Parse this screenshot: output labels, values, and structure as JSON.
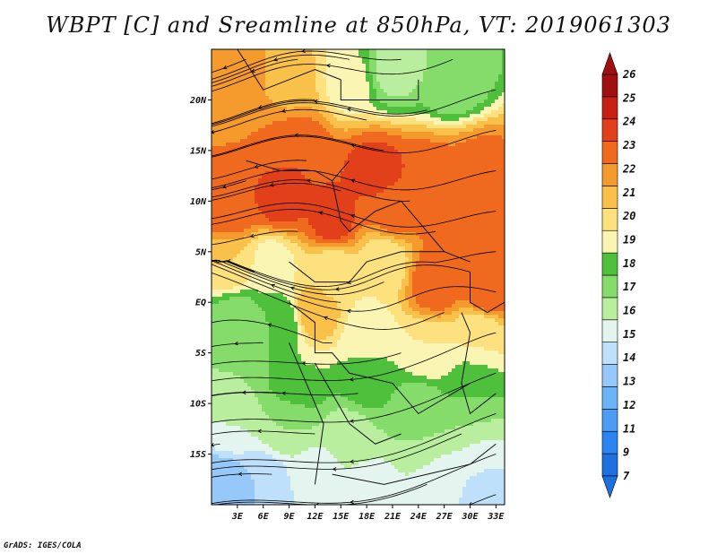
{
  "title": "WBPT [C] and Sreamline at 850hPa, VT: 2019061303",
  "credit": "GrADS: IGES/COLA",
  "map": {
    "lon_range": [
      0,
      34
    ],
    "lat_range": [
      -20,
      25
    ],
    "lat_labels": [
      {
        "text": "20N",
        "lat": 20
      },
      {
        "text": "15N",
        "lat": 15
      },
      {
        "text": "10N",
        "lat": 10
      },
      {
        "text": "5N",
        "lat": 5
      },
      {
        "text": "EQ",
        "lat": 0
      },
      {
        "text": "5S",
        "lat": -5
      },
      {
        "text": "10S",
        "lat": -10
      },
      {
        "text": "15S",
        "lat": -15
      }
    ],
    "lon_labels": [
      {
        "text": "3E",
        "lon": 3
      },
      {
        "text": "6E",
        "lon": 6
      },
      {
        "text": "9E",
        "lon": 9
      },
      {
        "text": "12E",
        "lon": 12
      },
      {
        "text": "15E",
        "lon": 15
      },
      {
        "text": "18E",
        "lon": 18
      },
      {
        "text": "21E",
        "lon": 21
      },
      {
        "text": "24E",
        "lon": 24
      },
      {
        "text": "27E",
        "lon": 27
      },
      {
        "text": "30E",
        "lon": 30
      },
      {
        "text": "33E",
        "lon": 33
      }
    ]
  },
  "colorbar": {
    "labels": [
      "7",
      "9",
      "11",
      "12",
      "13",
      "14",
      "15",
      "16",
      "17",
      "18",
      "19",
      "20",
      "21",
      "22",
      "23",
      "24",
      "25",
      "26"
    ],
    "colors": [
      "#1e6fe0",
      "#2b85f0",
      "#4a9cf5",
      "#6db3f8",
      "#96c9fa",
      "#bfe0fb",
      "#e3f5ee",
      "#b9ee9e",
      "#86dc6a",
      "#4fc03c",
      "#fbf5b4",
      "#fde17e",
      "#f9c04a",
      "#f59a2d",
      "#ef6a1e",
      "#e2401a",
      "#c81f15",
      "#a01010"
    ]
  },
  "field": {
    "temp_sites": [
      [
        3,
        22,
        22.5
      ],
      [
        9,
        22,
        21.5
      ],
      [
        16,
        22,
        19.5
      ],
      [
        21,
        23,
        16.5
      ],
      [
        28,
        22,
        17
      ],
      [
        4,
        17,
        23
      ],
      [
        10,
        15,
        24
      ],
      [
        19,
        13,
        24.5
      ],
      [
        25,
        12,
        24
      ],
      [
        31,
        13,
        23.5
      ],
      [
        2,
        9,
        24
      ],
      [
        8,
        10,
        24.5
      ],
      [
        14,
        8,
        24.5
      ],
      [
        21,
        9,
        23.5
      ],
      [
        29,
        7,
        24
      ],
      [
        2,
        4,
        21
      ],
      [
        7,
        4,
        19.5
      ],
      [
        14,
        3,
        20
      ],
      [
        20,
        4,
        20
      ],
      [
        26,
        2,
        24
      ],
      [
        32,
        1,
        24
      ],
      [
        3,
        -2,
        17
      ],
      [
        8,
        -2,
        18
      ],
      [
        12,
        -1,
        22
      ],
      [
        18,
        -3,
        19.5
      ],
      [
        25,
        -5,
        20
      ],
      [
        31,
        -3,
        20
      ],
      [
        3,
        -7,
        17
      ],
      [
        10,
        -8,
        19
      ],
      [
        18,
        -8,
        18.5
      ],
      [
        24,
        -10,
        17.5
      ],
      [
        30,
        -9,
        18
      ],
      [
        2,
        -12,
        16
      ],
      [
        9,
        -12,
        17
      ],
      [
        16,
        -13,
        16.5
      ],
      [
        24,
        -14,
        17
      ],
      [
        31,
        -15,
        16
      ],
      [
        1,
        -18,
        13
      ],
      [
        6,
        -18,
        14
      ],
      [
        12,
        -17,
        15.5
      ],
      [
        19,
        -19,
        15
      ],
      [
        26,
        -18,
        15
      ],
      [
        32,
        -18,
        14.5
      ]
    ],
    "streamline_seeds": [
      [
        33,
        21
      ],
      [
        33,
        17
      ],
      [
        33,
        13
      ],
      [
        33,
        9
      ],
      [
        33,
        5
      ],
      [
        33,
        1
      ],
      [
        33,
        -3
      ],
      [
        33,
        -7
      ],
      [
        33,
        -11
      ],
      [
        33,
        -15
      ],
      [
        33,
        -19
      ],
      [
        28,
        24
      ],
      [
        22,
        24
      ],
      [
        16,
        24
      ],
      [
        10,
        24
      ],
      [
        4,
        24
      ],
      [
        25,
        19
      ],
      [
        20,
        15
      ],
      [
        15,
        11
      ],
      [
        10,
        7
      ],
      [
        5,
        3
      ],
      [
        27,
        -1
      ],
      [
        22,
        -5
      ],
      [
        17,
        -9
      ],
      [
        12,
        -13
      ],
      [
        7,
        -17
      ],
      [
        20,
        2
      ],
      [
        14,
        -4
      ],
      [
        26,
        7
      ],
      [
        8,
        -9
      ],
      [
        29,
        -13
      ],
      [
        18,
        18
      ],
      [
        11,
        14
      ],
      [
        4,
        12
      ],
      [
        23,
        10
      ],
      [
        30,
        3
      ],
      [
        1,
        -14
      ],
      [
        1,
        17
      ],
      [
        12,
        20
      ],
      [
        25,
        -18
      ],
      [
        15,
        0
      ],
      [
        6,
        -4
      ]
    ]
  }
}
